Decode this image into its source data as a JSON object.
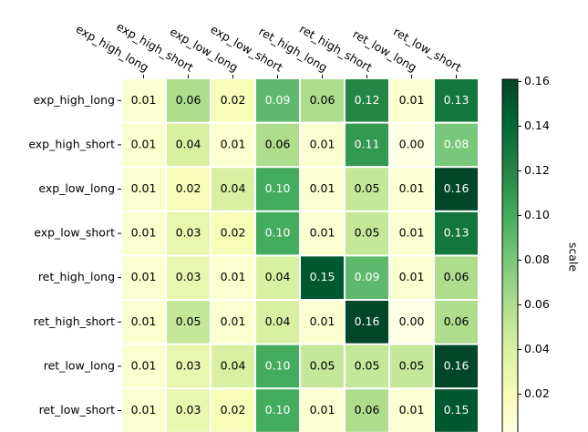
{
  "chart_data": {
    "type": "heatmap",
    "rows": [
      "exp_high_long",
      "exp_high_short",
      "exp_low_long",
      "exp_low_short",
      "ret_high_long",
      "ret_high_short",
      "ret_low_long",
      "ret_low_short"
    ],
    "columns": [
      "exp_high_long",
      "exp_high_short",
      "exp_low_long",
      "exp_low_short",
      "ret_high_long",
      "ret_high_short",
      "ret_low_long",
      "ret_low_short"
    ],
    "values": [
      [
        0.01,
        0.06,
        0.02,
        0.09,
        0.06,
        0.12,
        0.01,
        0.13
      ],
      [
        0.01,
        0.04,
        0.01,
        0.06,
        0.01,
        0.11,
        0.0,
        0.08
      ],
      [
        0.01,
        0.02,
        0.04,
        0.1,
        0.01,
        0.05,
        0.01,
        0.16
      ],
      [
        0.01,
        0.03,
        0.02,
        0.1,
        0.01,
        0.05,
        0.01,
        0.13
      ],
      [
        0.01,
        0.03,
        0.01,
        0.04,
        0.15,
        0.09,
        0.01,
        0.06
      ],
      [
        0.01,
        0.05,
        0.01,
        0.04,
        0.01,
        0.16,
        0.0,
        0.06
      ],
      [
        0.01,
        0.03,
        0.04,
        0.1,
        0.05,
        0.05,
        0.05,
        0.16
      ],
      [
        0.01,
        0.03,
        0.02,
        0.1,
        0.01,
        0.06,
        0.01,
        0.15
      ]
    ],
    "value_labels": [
      [
        "0.01",
        "0.06",
        "0.02",
        "0.09",
        "0.06",
        "0.12",
        "0.01",
        "0.13"
      ],
      [
        "0.01",
        "0.04",
        "0.01",
        "0.06",
        "0.01",
        "0.11",
        "0.00",
        "0.08"
      ],
      [
        "0.01",
        "0.02",
        "0.04",
        "0.10",
        "0.01",
        "0.05",
        "0.01",
        "0.16"
      ],
      [
        "0.01",
        "0.03",
        "0.02",
        "0.10",
        "0.01",
        "0.05",
        "0.01",
        "0.13"
      ],
      [
        "0.01",
        "0.03",
        "0.01",
        "0.04",
        "0.15",
        "0.09",
        "0.01",
        "0.06"
      ],
      [
        "0.01",
        "0.05",
        "0.01",
        "0.04",
        "0.01",
        "0.16",
        "0.00",
        "0.06"
      ],
      [
        "0.01",
        "0.03",
        "0.04",
        "0.10",
        "0.05",
        "0.05",
        "0.05",
        "0.16"
      ],
      [
        "0.01",
        "0.03",
        "0.02",
        "0.10",
        "0.01",
        "0.06",
        "0.01",
        "0.15"
      ]
    ],
    "colormap": "YlGn",
    "colorbar_label": "scale",
    "clim": [
      0,
      0.161
    ],
    "cticks": [
      0.02,
      0.04,
      0.06,
      0.08,
      {
        "value": 0.1,
        "label": "0.10"
      },
      0.12,
      0.14,
      0.16
    ]
  }
}
